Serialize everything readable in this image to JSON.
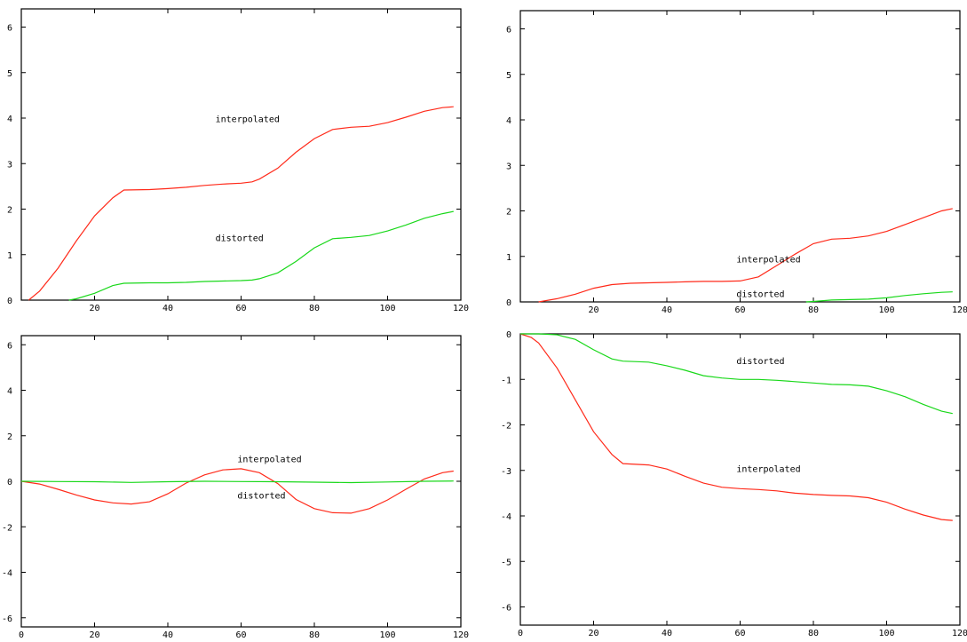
{
  "chart_data": [
    {
      "type": "line",
      "xlim": [
        0,
        120
      ],
      "ylim": [
        0,
        6.4
      ],
      "xticks": [
        20,
        40,
        60,
        80,
        100,
        120
      ],
      "yticks": [
        0,
        1,
        2,
        3,
        4,
        5,
        6
      ],
      "grid": false,
      "series": [
        {
          "color": "#ff2a1a",
          "x": [
            2,
            5,
            10,
            15,
            20,
            25,
            28,
            35,
            40,
            45,
            50,
            55,
            60,
            63,
            65,
            70,
            75,
            80,
            85,
            90,
            95,
            100,
            105,
            110,
            115,
            118
          ],
          "y": [
            0,
            0.2,
            0.7,
            1.3,
            1.85,
            2.25,
            2.42,
            2.43,
            2.45,
            2.48,
            2.52,
            2.55,
            2.57,
            2.6,
            2.66,
            2.9,
            3.25,
            3.55,
            3.75,
            3.8,
            3.82,
            3.9,
            4.02,
            4.15,
            4.23,
            4.25
          ]
        },
        {
          "color": "#19d81a",
          "x": [
            13,
            15,
            20,
            25,
            28,
            35,
            40,
            45,
            50,
            55,
            60,
            63,
            65,
            70,
            75,
            80,
            85,
            90,
            95,
            100,
            105,
            110,
            115,
            118
          ],
          "y": [
            0,
            0.03,
            0.15,
            0.32,
            0.37,
            0.38,
            0.38,
            0.39,
            0.41,
            0.42,
            0.43,
            0.44,
            0.47,
            0.6,
            0.85,
            1.15,
            1.35,
            1.38,
            1.42,
            1.52,
            1.65,
            1.8,
            1.9,
            1.95
          ]
        }
      ],
      "annotations": [
        {
          "text": "interpolated",
          "x": 53,
          "y": 3.97
        },
        {
          "text": "distorted",
          "x": 53,
          "y": 1.36
        }
      ]
    },
    {
      "type": "line",
      "xlim": [
        0,
        120
      ],
      "ylim": [
        0,
        6.4
      ],
      "xticks": [
        20,
        40,
        60,
        80,
        100,
        120
      ],
      "yticks": [
        0,
        1,
        2,
        3,
        4,
        5,
        6
      ],
      "grid": false,
      "series": [
        {
          "color": "#ff2a1a",
          "x": [
            5,
            10,
            15,
            20,
            25,
            30,
            35,
            40,
            45,
            50,
            55,
            60,
            65,
            70,
            75,
            80,
            85,
            90,
            95,
            100,
            105,
            110,
            115,
            118
          ],
          "y": [
            0,
            0.07,
            0.17,
            0.3,
            0.38,
            0.41,
            0.42,
            0.43,
            0.44,
            0.45,
            0.45,
            0.46,
            0.55,
            0.8,
            1.05,
            1.28,
            1.38,
            1.4,
            1.45,
            1.55,
            1.7,
            1.85,
            2.0,
            2.05
          ]
        },
        {
          "color": "#19d81a",
          "x": [
            78,
            80,
            85,
            90,
            95,
            100,
            105,
            110,
            115,
            118
          ],
          "y": [
            0,
            0.01,
            0.04,
            0.05,
            0.06,
            0.09,
            0.14,
            0.18,
            0.21,
            0.22
          ]
        }
      ],
      "annotations": [
        {
          "text": "interpolated",
          "x": 59,
          "y": 0.93
        },
        {
          "text": "distorted",
          "x": 59,
          "y": 0.17
        }
      ]
    },
    {
      "type": "line",
      "xlim": [
        0,
        120
      ],
      "ylim": [
        -6.4,
        6.4
      ],
      "xticks": [
        0,
        20,
        40,
        60,
        80,
        100,
        120
      ],
      "yticks": [
        -6,
        -4,
        -2,
        0,
        2,
        4,
        6
      ],
      "grid": false,
      "series": [
        {
          "color": "#ff2a1a",
          "x": [
            0,
            5,
            10,
            15,
            20,
            25,
            30,
            35,
            40,
            45,
            50,
            55,
            60,
            65,
            70,
            75,
            80,
            85,
            90,
            95,
            100,
            105,
            110,
            115,
            118
          ],
          "y": [
            0,
            -0.12,
            -0.35,
            -0.6,
            -0.82,
            -0.95,
            -1.0,
            -0.9,
            -0.55,
            -0.08,
            0.28,
            0.5,
            0.55,
            0.38,
            -0.1,
            -0.8,
            -1.2,
            -1.38,
            -1.4,
            -1.2,
            -0.82,
            -0.35,
            0.1,
            0.38,
            0.45
          ]
        },
        {
          "color": "#19d81a",
          "x": [
            0,
            10,
            20,
            30,
            40,
            50,
            60,
            70,
            80,
            90,
            100,
            110,
            118
          ],
          "y": [
            0,
            -0.01,
            -0.02,
            -0.05,
            -0.02,
            0.0,
            -0.01,
            -0.02,
            -0.04,
            -0.06,
            -0.03,
            0.0,
            0.01
          ]
        }
      ],
      "annotations": [
        {
          "text": "interpolated",
          "x": 59,
          "y": 0.95
        },
        {
          "text": "distorted",
          "x": 59,
          "y": -0.65
        }
      ]
    },
    {
      "type": "line",
      "xlim": [
        0,
        120
      ],
      "ylim": [
        -6.4,
        0
      ],
      "xticks": [
        0,
        20,
        40,
        60,
        80,
        100,
        120
      ],
      "yticks": [
        0,
        -1,
        -2,
        -3,
        -4,
        -5,
        -6
      ],
      "grid": false,
      "series": [
        {
          "color": "#ff2a1a",
          "x": [
            0,
            3,
            5,
            10,
            15,
            20,
            25,
            28,
            35,
            40,
            45,
            50,
            55,
            60,
            65,
            70,
            75,
            80,
            85,
            90,
            95,
            100,
            105,
            110,
            115,
            118
          ],
          "y": [
            0,
            -0.08,
            -0.2,
            -0.75,
            -1.45,
            -2.15,
            -2.65,
            -2.85,
            -2.88,
            -2.97,
            -3.13,
            -3.28,
            -3.37,
            -3.4,
            -3.42,
            -3.45,
            -3.5,
            -3.53,
            -3.55,
            -3.56,
            -3.6,
            -3.7,
            -3.85,
            -3.98,
            -4.08,
            -4.1
          ]
        },
        {
          "color": "#19d81a",
          "x": [
            0,
            5,
            10,
            15,
            20,
            25,
            28,
            35,
            40,
            45,
            50,
            55,
            60,
            65,
            70,
            75,
            80,
            85,
            90,
            95,
            100,
            105,
            110,
            115,
            118
          ],
          "y": [
            0,
            0,
            -0.02,
            -0.12,
            -0.35,
            -0.55,
            -0.6,
            -0.62,
            -0.7,
            -0.8,
            -0.92,
            -0.97,
            -1.0,
            -1.0,
            -1.02,
            -1.05,
            -1.08,
            -1.11,
            -1.12,
            -1.15,
            -1.25,
            -1.38,
            -1.55,
            -1.7,
            -1.75
          ]
        }
      ],
      "annotations": [
        {
          "text": "distorted",
          "x": 59,
          "y": -0.6
        },
        {
          "text": "interpolated",
          "x": 59,
          "y": -2.98
        }
      ]
    }
  ]
}
